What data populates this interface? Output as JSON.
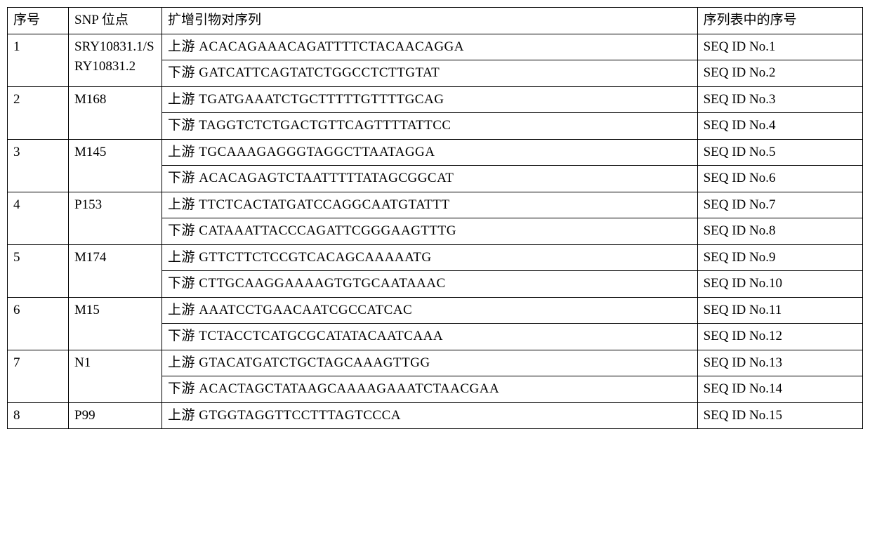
{
  "header": {
    "col1": "序号",
    "col2": "SNP 位点",
    "col3": "扩增引物对序列",
    "col4": "序列表中的序号"
  },
  "rows": [
    {
      "num": "1",
      "snp": "SRY10831.1/SRY10831.2",
      "primers": [
        {
          "dir": "上游 ACACAGAAACAGATTTTCTACAACAGGA",
          "seqid": "SEQ ID No.1"
        },
        {
          "dir": "下游 GATCATTCAGTATCTGGCCTCTTGTAT",
          "seqid": "SEQ ID No.2"
        }
      ]
    },
    {
      "num": "2",
      "snp": "M168",
      "primers": [
        {
          "dir": "上游 TGATGAAATCTGCTTTTTGTTTTGCAG",
          "seqid": "SEQ ID No.3"
        },
        {
          "dir": "下游 TAGGTCTCTGACTGTTCAGTTTTATTCC",
          "seqid": "SEQ ID No.4"
        }
      ]
    },
    {
      "num": "3",
      "snp": "M145",
      "primers": [
        {
          "dir": "上游 TGCAAAGAGGGTAGGCTTAATAGGA",
          "seqid": "SEQ ID No.5"
        },
        {
          "dir": "下游 ACACAGAGTCTAATTTTTATAGCGGCAT",
          "seqid": "SEQ ID No.6"
        }
      ]
    },
    {
      "num": "4",
      "snp": "P153",
      "primers": [
        {
          "dir": "上游 TTCTCACTATGATCCAGGCAATGTATTT",
          "seqid": "SEQ ID No.7"
        },
        {
          "dir": "下游 CATAAATTACCCAGATTCGGGAAGTTTG",
          "seqid": "SEQ ID No.8"
        }
      ]
    },
    {
      "num": "5",
      "snp": "M174",
      "primers": [
        {
          "dir": "上游 GTTCTTCTCCGTCACAGCAAAAATG",
          "seqid": "SEQ ID No.9"
        },
        {
          "dir": "下游 CTTGCAAGGAAAAGTGTGCAATAAAC",
          "seqid": "SEQ ID No.10"
        }
      ]
    },
    {
      "num": "6",
      "snp": "M15",
      "primers": [
        {
          "dir": "上游 AAATCCTGAACAATCGCCATCAC",
          "seqid": "SEQ ID No.11"
        },
        {
          "dir": "下游 TCTACCTCATGCGCATATACAATCAAA",
          "seqid": "SEQ ID No.12"
        }
      ]
    },
    {
      "num": "7",
      "snp": "N1",
      "primers": [
        {
          "dir": "上游 GTACATGATCTGCTAGCAAAGTTGG",
          "seqid": "SEQ ID No.13"
        },
        {
          "dir": "下游 ACACTAGCTATAAGCAAAAGAAATCTAACGAA",
          "seqid": "SEQ ID No.14"
        }
      ]
    },
    {
      "num": "8",
      "snp": "P99",
      "primers": [
        {
          "dir": "上游 GTGGTAGGTTCCTTTAGTCCCA",
          "seqid": "SEQ ID No.15"
        }
      ]
    }
  ]
}
